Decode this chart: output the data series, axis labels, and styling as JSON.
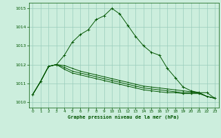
{
  "title": "Graphe pression niveau de la mer (hPa)",
  "bg_color": "#cceedd",
  "grid_color": "#99ccbb",
  "line_color": "#005500",
  "ylim": [
    1009.7,
    1015.3
  ],
  "xlim": [
    -0.5,
    23.5
  ],
  "yticks": [
    1010,
    1011,
    1012,
    1013,
    1014,
    1015
  ],
  "xticks": [
    0,
    1,
    2,
    3,
    4,
    5,
    6,
    7,
    8,
    9,
    10,
    11,
    12,
    13,
    14,
    15,
    16,
    17,
    18,
    19,
    20,
    21,
    22,
    23
  ],
  "series1": [
    1010.4,
    1011.1,
    1011.9,
    1012.0,
    1012.5,
    1013.2,
    1013.6,
    1013.85,
    1014.4,
    1014.6,
    1015.0,
    1014.7,
    1014.1,
    1013.5,
    1013.0,
    1012.65,
    1012.5,
    1011.8,
    1011.3,
    1010.8,
    1010.6,
    1010.5,
    1010.5,
    1010.2
  ],
  "series2": [
    1010.4,
    1011.1,
    1011.9,
    1012.0,
    1011.75,
    1011.55,
    1011.45,
    1011.35,
    1011.25,
    1011.15,
    1011.05,
    1010.95,
    1010.85,
    1010.75,
    1010.65,
    1010.6,
    1010.55,
    1010.5,
    1010.5,
    1010.45,
    1010.45,
    1010.45,
    1010.3,
    1010.2
  ],
  "series3": [
    1010.4,
    1011.1,
    1011.9,
    1012.0,
    1011.85,
    1011.65,
    1011.55,
    1011.45,
    1011.35,
    1011.25,
    1011.15,
    1011.05,
    1010.95,
    1010.85,
    1010.75,
    1010.7,
    1010.65,
    1010.6,
    1010.55,
    1010.5,
    1010.5,
    1010.5,
    1010.3,
    1010.2
  ],
  "series4": [
    1010.4,
    1011.1,
    1011.9,
    1012.0,
    1011.95,
    1011.8,
    1011.65,
    1011.55,
    1011.45,
    1011.35,
    1011.25,
    1011.15,
    1011.05,
    1010.95,
    1010.85,
    1010.8,
    1010.75,
    1010.7,
    1010.65,
    1010.6,
    1010.55,
    1010.5,
    1010.3,
    1010.2
  ]
}
